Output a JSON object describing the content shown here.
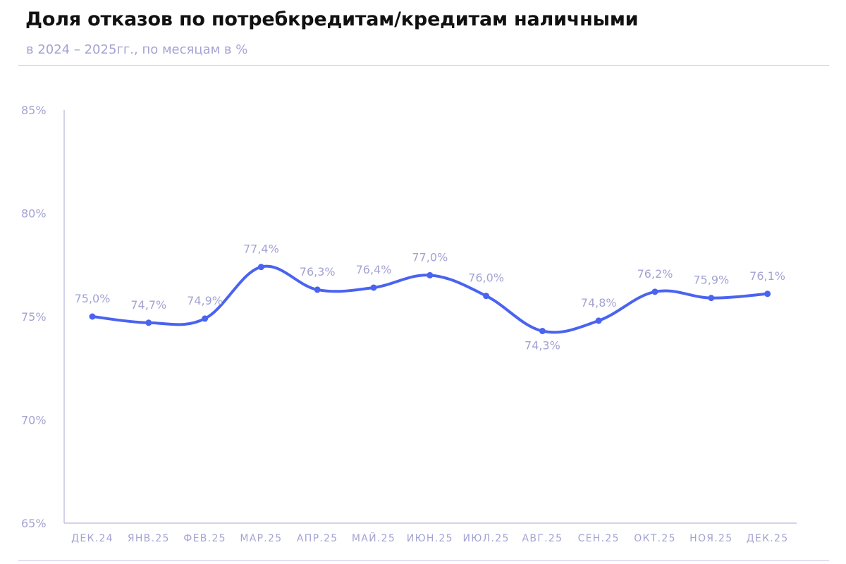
{
  "colors": {
    "line": "#4a63f0",
    "muted": "#a3a3d3",
    "axis": "#b9b9de",
    "rule": "#c7c7e4",
    "title": "#111111"
  },
  "chart_data": {
    "type": "line",
    "title": "Доля отказов по потребкредитам/кредитам наличными",
    "subtitle": "в 2024 – 2025гг., по месяцам в %",
    "xlabel": "",
    "ylabel": "",
    "ylim": [
      65,
      85
    ],
    "y_ticks": [
      65,
      70,
      75,
      80,
      85
    ],
    "y_tick_labels": [
      "65%",
      "70%",
      "75%",
      "80%",
      "85%"
    ],
    "grid": false,
    "legend": "none",
    "categories": [
      "ДЕК.24",
      "ЯНВ.25",
      "ФЕВ.25",
      "МАР.25",
      "АПР.25",
      "МАЙ.25",
      "ИЮН.25",
      "ИЮЛ.25",
      "АВГ.25",
      "СЕН.25",
      "ОКТ.25",
      "НОЯ.25",
      "ДЕК.25"
    ],
    "series": [
      {
        "values": [
          75.0,
          74.7,
          74.9,
          77.4,
          76.3,
          76.4,
          77.0,
          76.0,
          74.3,
          74.8,
          76.2,
          75.9,
          76.1
        ],
        "labels": [
          "75,0%",
          "74,7%",
          "74,9%",
          "77,4%",
          "76,3%",
          "76,4%",
          "77,0%",
          "76,0%",
          "74,3%",
          "74,8%",
          "76,2%",
          "75,9%",
          "76,1%"
        ],
        "label_positions": [
          "above",
          "above",
          "above",
          "above",
          "above",
          "above",
          "above",
          "above",
          "below",
          "above",
          "above",
          "above",
          "above"
        ]
      }
    ]
  }
}
